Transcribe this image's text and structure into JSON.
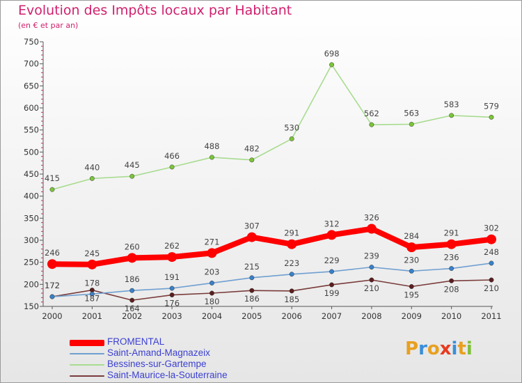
{
  "header": {
    "title": "Evolution des Impôts locaux par Habitant",
    "subtitle": "(en € et par an)"
  },
  "logo": {
    "text": "Proxiti",
    "letters": [
      "P",
      "r",
      "o",
      "x",
      "i",
      "t",
      "i"
    ],
    "colors": [
      "#e8a020",
      "#3a8fd8",
      "#e8a020",
      "#e83a20",
      "#3a8fd8",
      "#e8a020",
      "#7fbf3a"
    ]
  },
  "chart_data": {
    "type": "line",
    "title": "Evolution des Impôts locaux par Habitant",
    "subtitle": "(en € et par an)",
    "x": [
      "2000",
      "2001",
      "2002",
      "2003",
      "2004",
      "2005",
      "2006",
      "2007",
      "2008",
      "2009",
      "2010",
      "2011"
    ],
    "ylim": [
      150,
      750
    ],
    "yticks": [
      150,
      200,
      250,
      300,
      350,
      400,
      450,
      500,
      550,
      600,
      650,
      700,
      750
    ],
    "grid": false,
    "legend_position": "bottom-left",
    "series": [
      {
        "name": "FROMENTAL",
        "color": "#ff0000",
        "values": [
          246,
          245,
          260,
          262,
          271,
          307,
          291,
          312,
          326,
          284,
          291,
          302
        ]
      },
      {
        "name": "Saint-Amand-Magnazeix",
        "color": "#6f9fd0",
        "marker": "#3a80c8",
        "values": [
          172,
          178,
          186,
          191,
          203,
          215,
          223,
          229,
          239,
          230,
          236,
          248
        ]
      },
      {
        "name": "Bessines-sur-Gartempe",
        "color": "#a8dc90",
        "marker": "#7cc43a",
        "values": [
          415,
          440,
          445,
          466,
          488,
          482,
          530,
          698,
          562,
          563,
          583,
          579
        ]
      },
      {
        "name": "Saint-Maurice-la-Souterraine",
        "color": "#7a3a3a",
        "marker": "#5a1e1e",
        "values": [
          172,
          187,
          164,
          176,
          180,
          186,
          185,
          199,
          210,
          195,
          208,
          210
        ]
      }
    ]
  }
}
